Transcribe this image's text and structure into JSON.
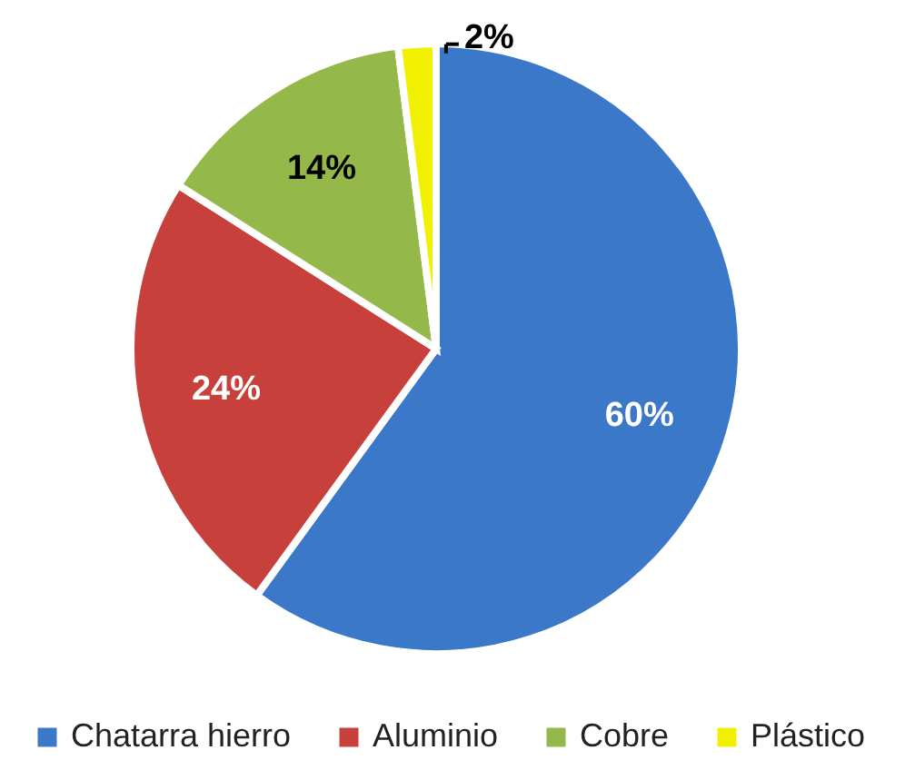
{
  "chart_data": {
    "type": "pie",
    "categories": [
      "Chatarra hierro",
      "Aluminio",
      "Cobre",
      "Plástico"
    ],
    "values": [
      60,
      24,
      14,
      2
    ],
    "colors": [
      "#3c78c8",
      "#c8403c",
      "#94b84a",
      "#f0f000"
    ],
    "value_labels": [
      "60%",
      "24%",
      "14%",
      "2%"
    ],
    "legend": "bottom"
  }
}
